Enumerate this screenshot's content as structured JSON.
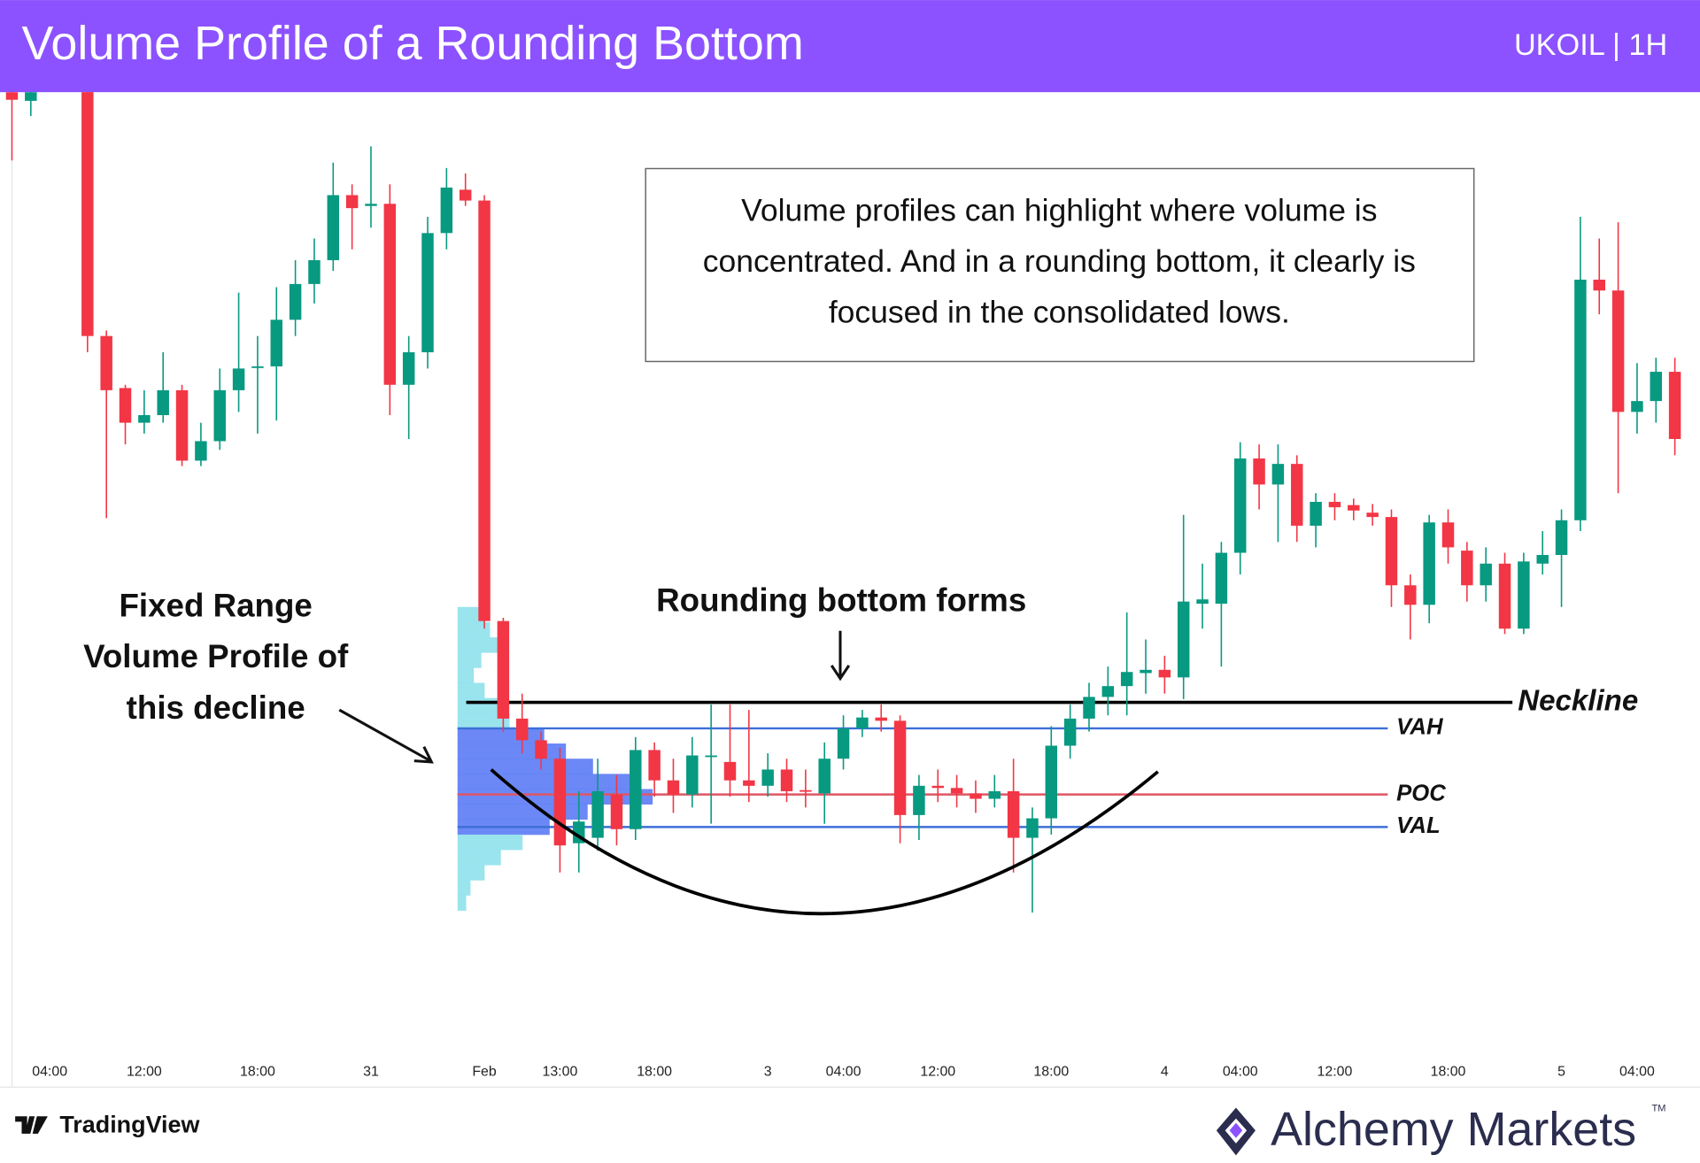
{
  "chart_data": {
    "type": "candlestick",
    "title": "Volume Profile of a Rounding Bottom",
    "subtitle": "UKOIL | 1H",
    "up_color": "#089981",
    "down_color": "#f23645",
    "open": [
      915,
      907,
      930,
      940,
      930,
      690,
      642,
      610,
      617,
      640,
      575,
      593,
      640,
      661,
      662,
      705,
      738,
      760,
      820,
      810,
      812,
      645,
      675,
      785,
      825,
      815,
      427,
      337,
      317,
      300,
      222,
      227,
      267,
      235,
      308,
      280,
      267,
      302,
      297,
      280,
      275,
      290,
      271,
      268,
      300,
      328,
      338,
      335,
      248,
      275,
      273,
      268,
      263,
      270,
      227,
      245,
      312,
      337,
      357,
      367,
      379,
      382,
      375,
      443,
      443,
      490,
      577,
      553,
      572,
      515,
      537,
      534,
      527,
      523,
      460,
      442,
      518,
      492,
      460,
      480,
      420,
      480,
      488,
      520,
      742,
      732,
      620,
      630,
      657
    ],
    "high": [
      920,
      920,
      950,
      950,
      935,
      695,
      645,
      640,
      675,
      645,
      610,
      660,
      730,
      690,
      735,
      760,
      780,
      850,
      830,
      865,
      830,
      690,
      800,
      845,
      840,
      820,
      430,
      360,
      325,
      310,
      270,
      300,
      285,
      320,
      315,
      300,
      320,
      350,
      350,
      345,
      305,
      300,
      290,
      315,
      340,
      345,
      350,
      340,
      285,
      290,
      285,
      280,
      285,
      300,
      255,
      330,
      350,
      370,
      385,
      435,
      410,
      395,
      525,
      480,
      500,
      592,
      590,
      590,
      580,
      545,
      545,
      540,
      535,
      530,
      470,
      525,
      530,
      500,
      495,
      490,
      490,
      510,
      530,
      800,
      780,
      795,
      665,
      670,
      670
    ],
    "low": [
      852,
      893,
      925,
      920,
      675,
      522,
      590,
      600,
      610,
      570,
      570,
      585,
      620,
      600,
      612,
      690,
      720,
      750,
      770,
      790,
      617,
      595,
      660,
      770,
      810,
      420,
      325,
      305,
      290,
      195,
      195,
      215,
      220,
      225,
      265,
      250,
      255,
      240,
      265,
      260,
      265,
      260,
      255,
      240,
      290,
      320,
      325,
      222,
      225,
      260,
      255,
      250,
      255,
      195,
      158,
      230,
      300,
      325,
      340,
      340,
      360,
      360,
      355,
      420,
      385,
      470,
      530,
      500,
      500,
      495,
      520,
      520,
      515,
      440,
      410,
      425,
      480,
      445,
      445,
      415,
      415,
      470,
      440,
      510,
      710,
      545,
      600,
      610,
      580
    ],
    "close": [
      908,
      915,
      940,
      935,
      690,
      640,
      610,
      617,
      640,
      575,
      593,
      640,
      660,
      662,
      705,
      738,
      760,
      820,
      808,
      812,
      645,
      675,
      785,
      827,
      815,
      427,
      337,
      317,
      300,
      220,
      242,
      270,
      235,
      308,
      280,
      267,
      303,
      303,
      280,
      275,
      290,
      270,
      270,
      300,
      328,
      338,
      335,
      248,
      275,
      273,
      268,
      263,
      270,
      227,
      245,
      312,
      337,
      357,
      367,
      380,
      382,
      375,
      445,
      447,
      490,
      577,
      553,
      572,
      515,
      537,
      532,
      529,
      523,
      460,
      442,
      518,
      495,
      460,
      480,
      420,
      482,
      488,
      520,
      742,
      732,
      620,
      630,
      657,
      595
    ],
    "xlim": [
      -0.631,
      89.33
    ],
    "ylim": [
      25,
      915
    ],
    "xticks": [
      {
        "value": 2,
        "label": "04:00"
      },
      {
        "value": 7,
        "label": "12:00"
      },
      {
        "value": 13,
        "label": "18:00"
      },
      {
        "value": 19,
        "label": "31"
      },
      {
        "value": 25,
        "label": "Feb"
      },
      {
        "value": 29,
        "label": "13:00"
      },
      {
        "value": 34,
        "label": "18:00"
      },
      {
        "value": 40,
        "label": "3"
      },
      {
        "value": 44,
        "label": "04:00"
      },
      {
        "value": 49,
        "label": "12:00"
      },
      {
        "value": 55,
        "label": "18:00"
      },
      {
        "value": 61,
        "label": "4"
      },
      {
        "value": 65,
        "label": "04:00"
      },
      {
        "value": 70,
        "label": "12:00"
      },
      {
        "value": 76,
        "label": "18:00"
      },
      {
        "value": 82,
        "label": "5"
      },
      {
        "value": 86,
        "label": "04:00"
      }
    ],
    "volume_profile": {
      "levels": [
        433,
        419,
        405,
        391,
        377,
        363,
        349,
        335,
        321,
        307,
        293,
        279,
        265,
        251,
        237,
        223,
        209,
        195,
        181,
        167
      ],
      "volumes": [
        25,
        30,
        40,
        22,
        15,
        25,
        40,
        48,
        80,
        100,
        125,
        160,
        180,
        120,
        85,
        60,
        40,
        25,
        12,
        8
      ],
      "value_area_color": "#5b7bf5",
      "outside_color": "#8fe1ec",
      "line_color": "#3d6fd6",
      "poc_color": "#e05563",
      "vah": {
        "value": 328,
        "label": "VAH"
      },
      "poc": {
        "value": 267,
        "label": "POC"
      },
      "val": {
        "value": 237,
        "label": "VAL"
      }
    },
    "neckline": {
      "value": 352,
      "label": "Neckline"
    },
    "annotation_box": [
      "Volume profiles can highlight where volume is",
      "concentrated. And in a rounding bottom, it clearly is",
      "focused in the consolidated lows."
    ],
    "pattern_label": "Rounding bottom forms",
    "profile_label": [
      "Fixed Range",
      "Volume Profile of",
      "this decline"
    ]
  },
  "footer": {
    "source": "TradingView",
    "brand": "Alchemy Markets",
    "trademark": "TM"
  }
}
